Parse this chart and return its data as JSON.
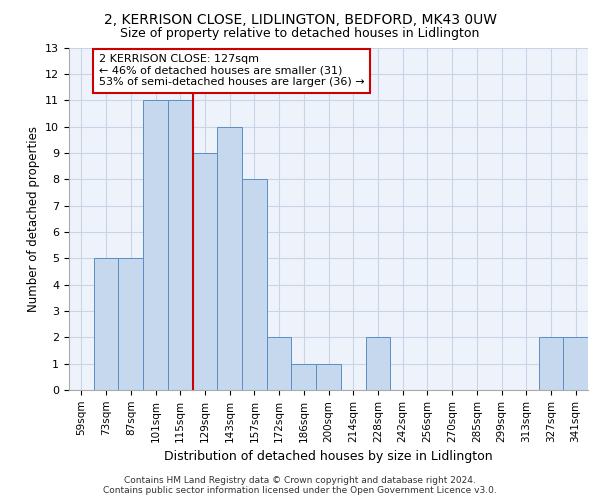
{
  "title1": "2, KERRISON CLOSE, LIDLINGTON, BEDFORD, MK43 0UW",
  "title2": "Size of property relative to detached houses in Lidlington",
  "xlabel": "Distribution of detached houses by size in Lidlington",
  "ylabel": "Number of detached properties",
  "categories": [
    "59sqm",
    "73sqm",
    "87sqm",
    "101sqm",
    "115sqm",
    "129sqm",
    "143sqm",
    "157sqm",
    "172sqm",
    "186sqm",
    "200sqm",
    "214sqm",
    "228sqm",
    "242sqm",
    "256sqm",
    "270sqm",
    "285sqm",
    "299sqm",
    "313sqm",
    "327sqm",
    "341sqm"
  ],
  "values": [
    0,
    5,
    5,
    11,
    11,
    9,
    10,
    8,
    2,
    1,
    1,
    0,
    2,
    0,
    0,
    0,
    0,
    0,
    0,
    2,
    2
  ],
  "bar_color": "#c5d8ee",
  "bar_edge_color": "#5b8ec4",
  "subject_line_color": "#cc0000",
  "ylim": [
    0,
    13
  ],
  "yticks": [
    0,
    1,
    2,
    3,
    4,
    5,
    6,
    7,
    8,
    9,
    10,
    11,
    12,
    13
  ],
  "annotation_text": "2 KERRISON CLOSE: 127sqm\n← 46% of detached houses are smaller (31)\n53% of semi-detached houses are larger (36) →",
  "annotation_box_color": "#ffffff",
  "annotation_box_edge": "#cc0000",
  "footer_text": "Contains HM Land Registry data © Crown copyright and database right 2024.\nContains public sector information licensed under the Open Government Licence v3.0.",
  "grid_color": "#c8d4e8",
  "background_color": "#eef2fb"
}
